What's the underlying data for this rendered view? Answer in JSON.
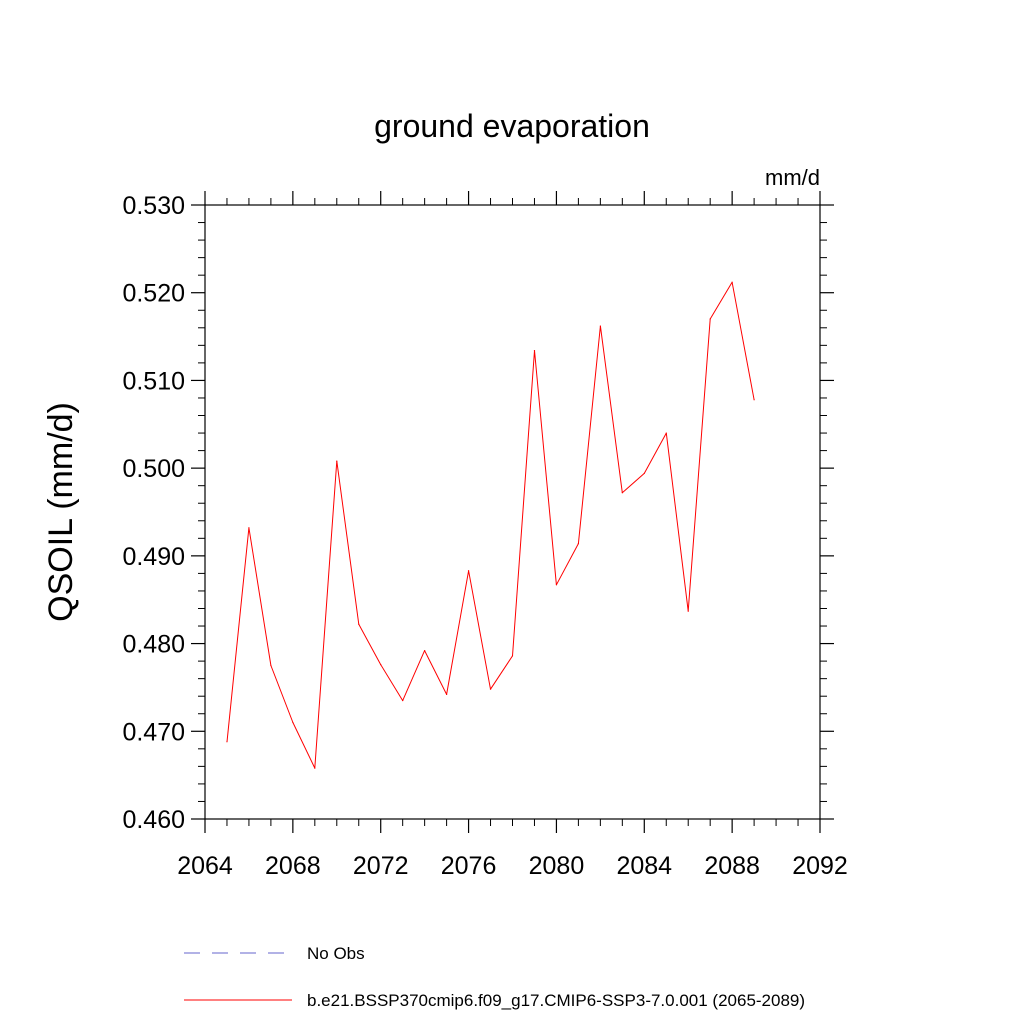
{
  "chart_data": {
    "type": "line",
    "title": "ground evaporation",
    "units_label": "mm/d",
    "xlabel": "",
    "ylabel": "QSOIL  (mm/d)",
    "xlim": [
      2064,
      2092
    ],
    "ylim": [
      0.46,
      0.53
    ],
    "x_major_ticks": [
      2064,
      2068,
      2072,
      2076,
      2080,
      2084,
      2088,
      2092
    ],
    "x_tick_labels": [
      "2064",
      "2068",
      "2072",
      "2076",
      "2080",
      "2084",
      "2088",
      "2092"
    ],
    "y_major_ticks": [
      0.46,
      0.47,
      0.48,
      0.49,
      0.5,
      0.51,
      0.52,
      0.53
    ],
    "y_tick_labels": [
      "0.460",
      "0.470",
      "0.480",
      "0.490",
      "0.500",
      "0.510",
      "0.520",
      "0.530"
    ],
    "grid": false,
    "legend_placement": "bottom",
    "series": [
      {
        "name": "b.e21.BSSP370cmip6.f09_g17.CMIP6-SSP3-7.0.001 (2065-2089)",
        "color": "#ff0000",
        "dash": "solid",
        "x": [
          2065,
          2066,
          2067,
          2068,
          2069,
          2070,
          2071,
          2072,
          2073,
          2074,
          2075,
          2076,
          2077,
          2078,
          2079,
          2080,
          2081,
          2082,
          2083,
          2084,
          2085,
          2086,
          2087,
          2088,
          2089
        ],
        "values": [
          0.4688,
          0.4932,
          0.4775,
          0.471,
          0.4658,
          0.5008,
          0.4822,
          0.4776,
          0.4735,
          0.4792,
          0.4742,
          0.4883,
          0.4748,
          0.4786,
          0.5134,
          0.4867,
          0.4914,
          0.5162,
          0.4972,
          0.4994,
          0.504,
          0.4837,
          0.517,
          0.5212,
          0.5078
        ]
      }
    ],
    "legend": [
      {
        "label": "No Obs",
        "color": "#6666cc",
        "dash": "dashed"
      },
      {
        "label": "b.e21.BSSP370cmip6.f09_g17.CMIP6-SSP3-7.0.001 (2065-2089)",
        "color": "#ff0000",
        "dash": "solid"
      }
    ]
  }
}
